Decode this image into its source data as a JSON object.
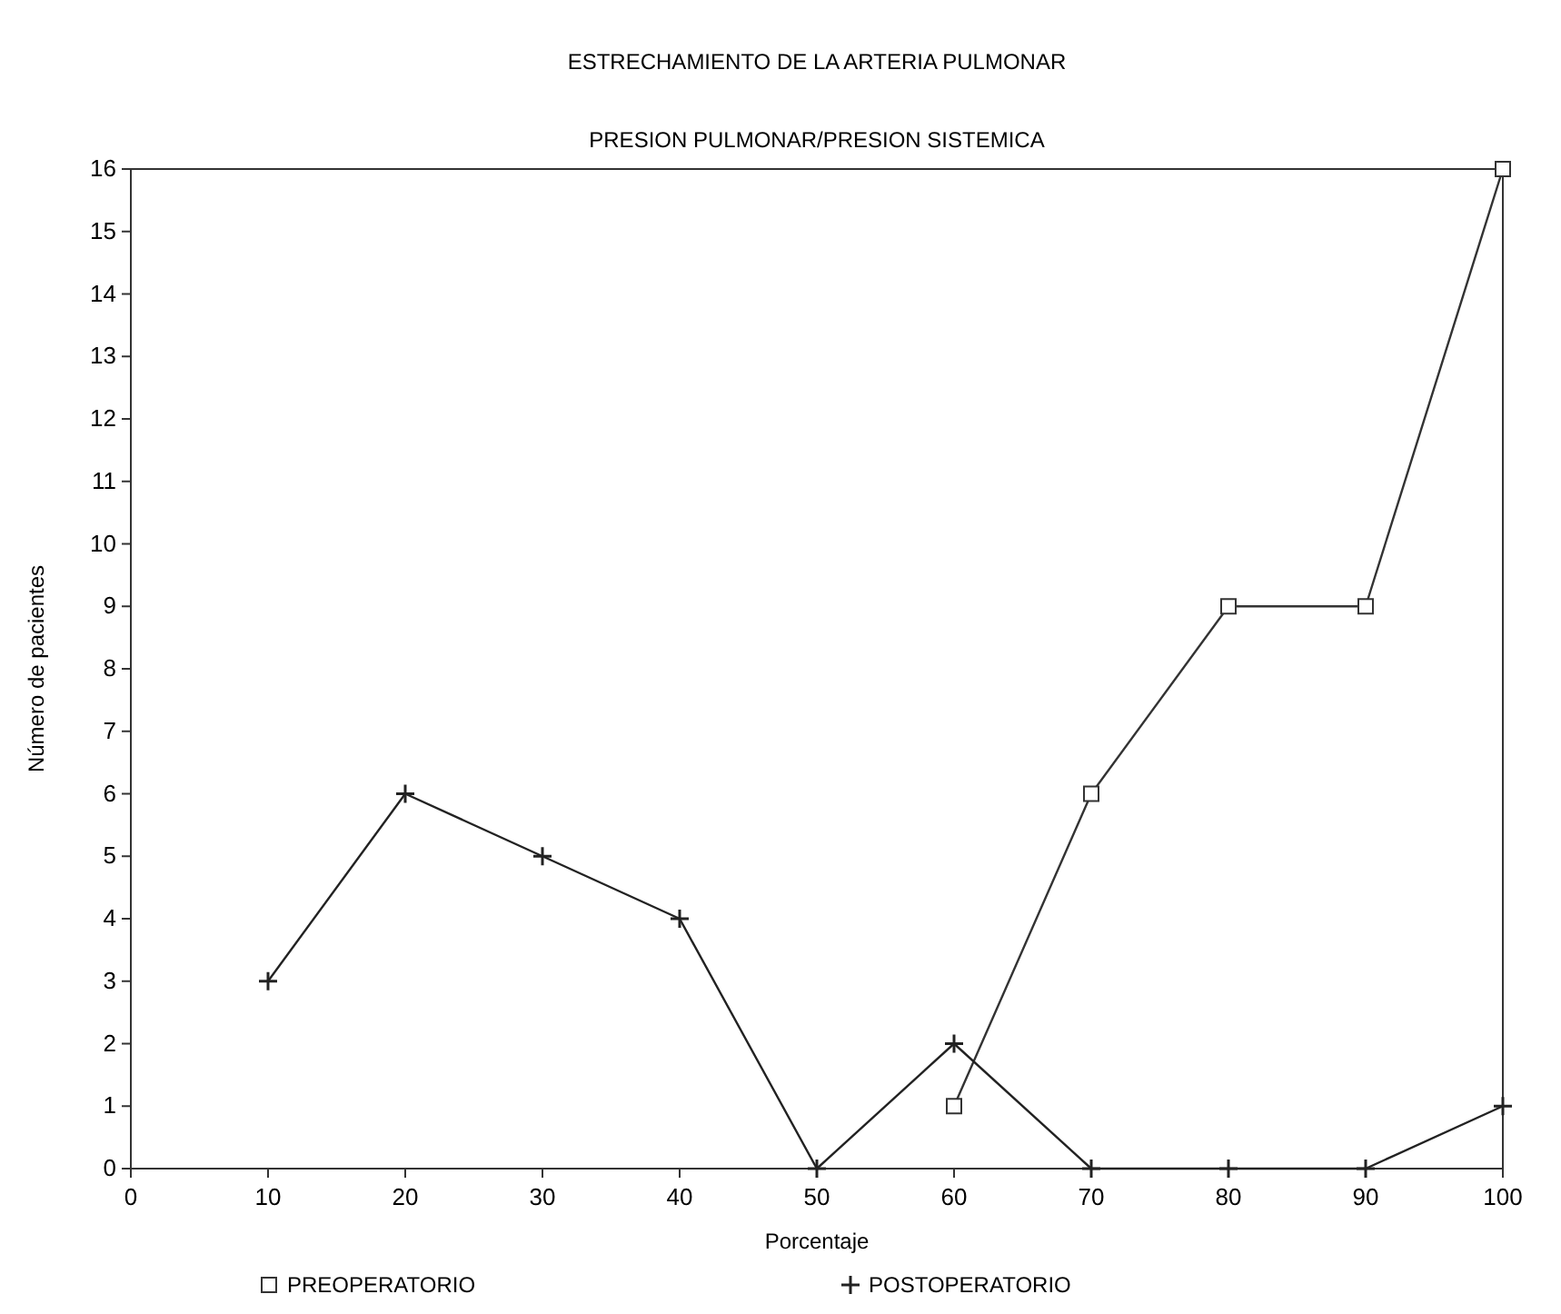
{
  "chart_data": {
    "type": "line",
    "title": "ESTRECHAMIENTO DE LA ARTERIA PULMONAR",
    "subtitle": "PRESION PULMONAR/PRESION SISTEMICA",
    "xlabel": "Porcentaje",
    "ylabel": "Número de pacientes",
    "x": [
      10,
      20,
      30,
      40,
      50,
      60,
      70,
      80,
      90,
      100
    ],
    "series": [
      {
        "name": "PREOPERATORIO",
        "color": "#333333",
        "marker": "square",
        "values": [
          null,
          null,
          null,
          null,
          null,
          1,
          6,
          9,
          9,
          16
        ]
      },
      {
        "name": "POSTOPERATORIO",
        "color": "#222222",
        "marker": "cross",
        "values": [
          3,
          6,
          5,
          4,
          0,
          2,
          0,
          0,
          0,
          1
        ]
      }
    ],
    "xlim": [
      0,
      100
    ],
    "xticks": [
      0,
      10,
      20,
      30,
      40,
      50,
      60,
      70,
      80,
      90,
      100
    ],
    "ylim": [
      0,
      16
    ],
    "yticks": [
      0,
      1,
      2,
      3,
      4,
      5,
      6,
      7,
      8,
      9,
      10,
      11,
      12,
      13,
      14,
      15,
      16
    ],
    "grid": false,
    "legend": "bottom",
    "line_style": "solid"
  }
}
